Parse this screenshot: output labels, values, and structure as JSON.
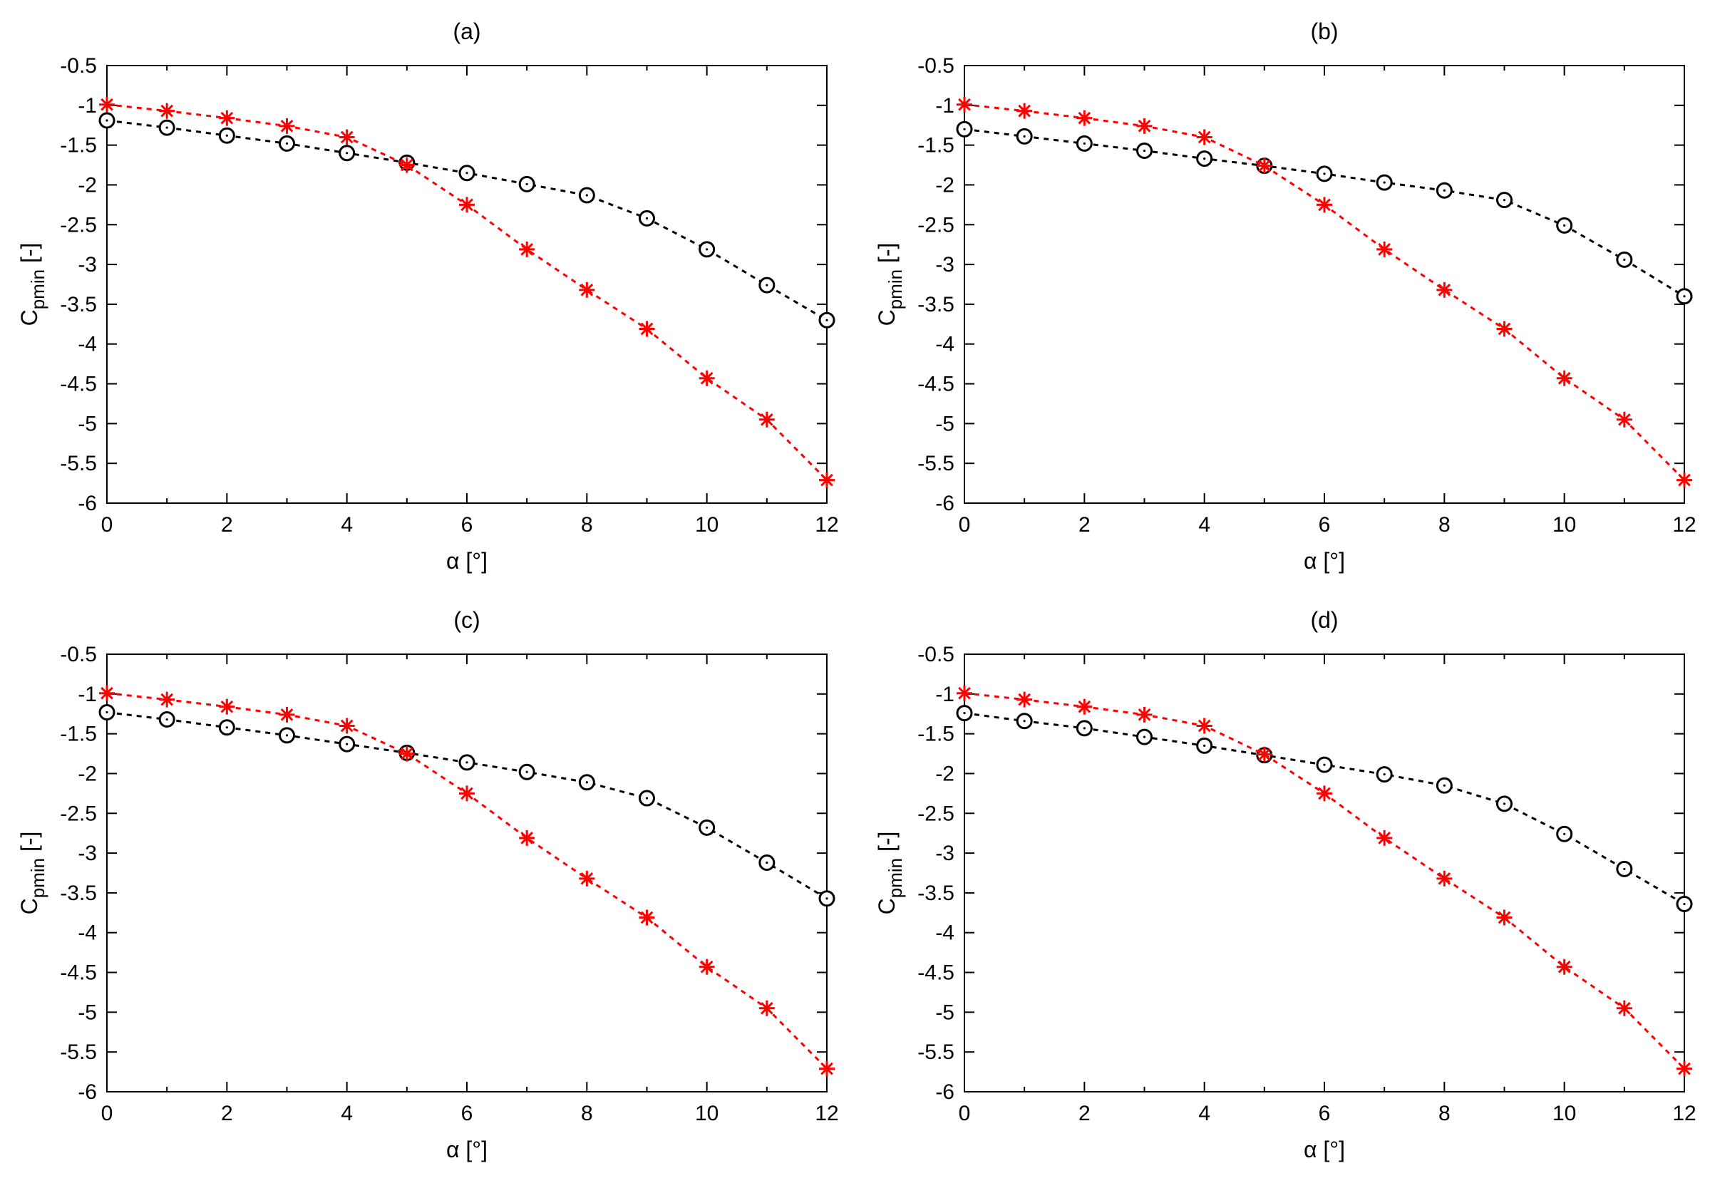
{
  "chart_data": [
    {
      "type": "line",
      "title": "(a)",
      "xlabel": "α [°]",
      "ylabel": {
        "main": "C",
        "sub": "pmin",
        "suffix": " [-]"
      },
      "xlim": [
        0,
        12
      ],
      "ylim": [
        -6,
        -0.5
      ],
      "xticks": [
        "0",
        "2",
        "4",
        "6",
        "8",
        "10",
        "12"
      ],
      "yticks": [
        "-0.5",
        "-1",
        "-1.5",
        "-2",
        "-2.5",
        "-3",
        "-3.5",
        "-4",
        "-4.5",
        "-5",
        "-5.5",
        "-6"
      ],
      "grid": false,
      "legend": "none",
      "x": [
        0,
        1,
        2,
        3,
        4,
        5,
        6,
        7,
        8,
        9,
        10,
        11,
        12
      ],
      "series": [
        {
          "color": "#000000",
          "marker": "circle",
          "line": "dashed",
          "values": [
            -1.19,
            -1.28,
            -1.38,
            -1.48,
            -1.6,
            -1.72,
            -1.85,
            -1.99,
            -2.13,
            -2.42,
            -2.81,
            -3.26,
            -3.7
          ]
        },
        {
          "color": "#ff0000",
          "marker": "asterisk",
          "line": "dashed",
          "values": [
            -0.99,
            -1.07,
            -1.16,
            -1.26,
            -1.4,
            -1.75,
            -2.25,
            -2.81,
            -3.32,
            -3.81,
            -4.43,
            -4.95,
            -5.71
          ]
        }
      ]
    },
    {
      "type": "line",
      "title": "(b)",
      "xlabel": "α [°]",
      "ylabel": {
        "main": "C",
        "sub": "pmin",
        "suffix": " [-]"
      },
      "xlim": [
        0,
        12
      ],
      "ylim": [
        -6,
        -0.5
      ],
      "xticks": [
        "0",
        "2",
        "4",
        "6",
        "8",
        "10",
        "12"
      ],
      "yticks": [
        "-0.5",
        "-1",
        "-1.5",
        "-2",
        "-2.5",
        "-3",
        "-3.5",
        "-4",
        "-4.5",
        "-5",
        "-5.5",
        "-6"
      ],
      "grid": false,
      "legend": "none",
      "x": [
        0,
        1,
        2,
        3,
        4,
        5,
        6,
        7,
        8,
        9,
        10,
        11,
        12
      ],
      "series": [
        {
          "color": "#000000",
          "marker": "circle",
          "line": "dashed",
          "values": [
            -1.3,
            -1.39,
            -1.48,
            -1.57,
            -1.67,
            -1.76,
            -1.86,
            -1.97,
            -2.07,
            -2.19,
            -2.51,
            -2.94,
            -3.4
          ]
        },
        {
          "color": "#ff0000",
          "marker": "asterisk",
          "line": "dashed",
          "values": [
            -0.99,
            -1.07,
            -1.16,
            -1.26,
            -1.4,
            -1.76,
            -2.25,
            -2.81,
            -3.32,
            -3.81,
            -4.43,
            -4.95,
            -5.71
          ]
        }
      ]
    },
    {
      "type": "line",
      "title": "(c)",
      "xlabel": "α [°]",
      "ylabel": {
        "main": "C",
        "sub": "pmin",
        "suffix": " [-]"
      },
      "xlim": [
        0,
        12
      ],
      "ylim": [
        -6,
        -0.5
      ],
      "xticks": [
        "0",
        "2",
        "4",
        "6",
        "8",
        "10",
        "12"
      ],
      "yticks": [
        "-0.5",
        "-1",
        "-1.5",
        "-2",
        "-2.5",
        "-3",
        "-3.5",
        "-4",
        "-4.5",
        "-5",
        "-5.5",
        "-6"
      ],
      "grid": false,
      "legend": "none",
      "x": [
        0,
        1,
        2,
        3,
        4,
        5,
        6,
        7,
        8,
        9,
        10,
        11,
        12
      ],
      "series": [
        {
          "color": "#000000",
          "marker": "circle",
          "line": "dashed",
          "values": [
            -1.23,
            -1.32,
            -1.42,
            -1.52,
            -1.63,
            -1.74,
            -1.86,
            -1.98,
            -2.11,
            -2.31,
            -2.68,
            -3.12,
            -3.57
          ]
        },
        {
          "color": "#ff0000",
          "marker": "asterisk",
          "line": "dashed",
          "values": [
            -0.99,
            -1.07,
            -1.16,
            -1.26,
            -1.4,
            -1.75,
            -2.25,
            -2.81,
            -3.32,
            -3.81,
            -4.43,
            -4.95,
            -5.71
          ]
        }
      ]
    },
    {
      "type": "line",
      "title": "(d)",
      "xlabel": "α [°]",
      "ylabel": {
        "main": "C",
        "sub": "pmin",
        "suffix": " [-]"
      },
      "xlim": [
        0,
        12
      ],
      "ylim": [
        -6,
        -0.5
      ],
      "xticks": [
        "0",
        "2",
        "4",
        "6",
        "8",
        "10",
        "12"
      ],
      "yticks": [
        "-0.5",
        "-1",
        "-1.5",
        "-2",
        "-2.5",
        "-3",
        "-3.5",
        "-4",
        "-4.5",
        "-5",
        "-5.5",
        "-6"
      ],
      "grid": false,
      "legend": "none",
      "x": [
        0,
        1,
        2,
        3,
        4,
        5,
        6,
        7,
        8,
        9,
        10,
        11,
        12
      ],
      "series": [
        {
          "color": "#000000",
          "marker": "circle",
          "line": "dashed",
          "values": [
            -1.24,
            -1.34,
            -1.43,
            -1.54,
            -1.65,
            -1.77,
            -1.89,
            -2.01,
            -2.15,
            -2.38,
            -2.76,
            -3.2,
            -3.64
          ]
        },
        {
          "color": "#ff0000",
          "marker": "asterisk",
          "line": "dashed",
          "values": [
            -0.99,
            -1.07,
            -1.16,
            -1.26,
            -1.4,
            -1.76,
            -2.25,
            -2.81,
            -3.32,
            -3.81,
            -4.43,
            -4.95,
            -5.71
          ]
        }
      ]
    }
  ]
}
